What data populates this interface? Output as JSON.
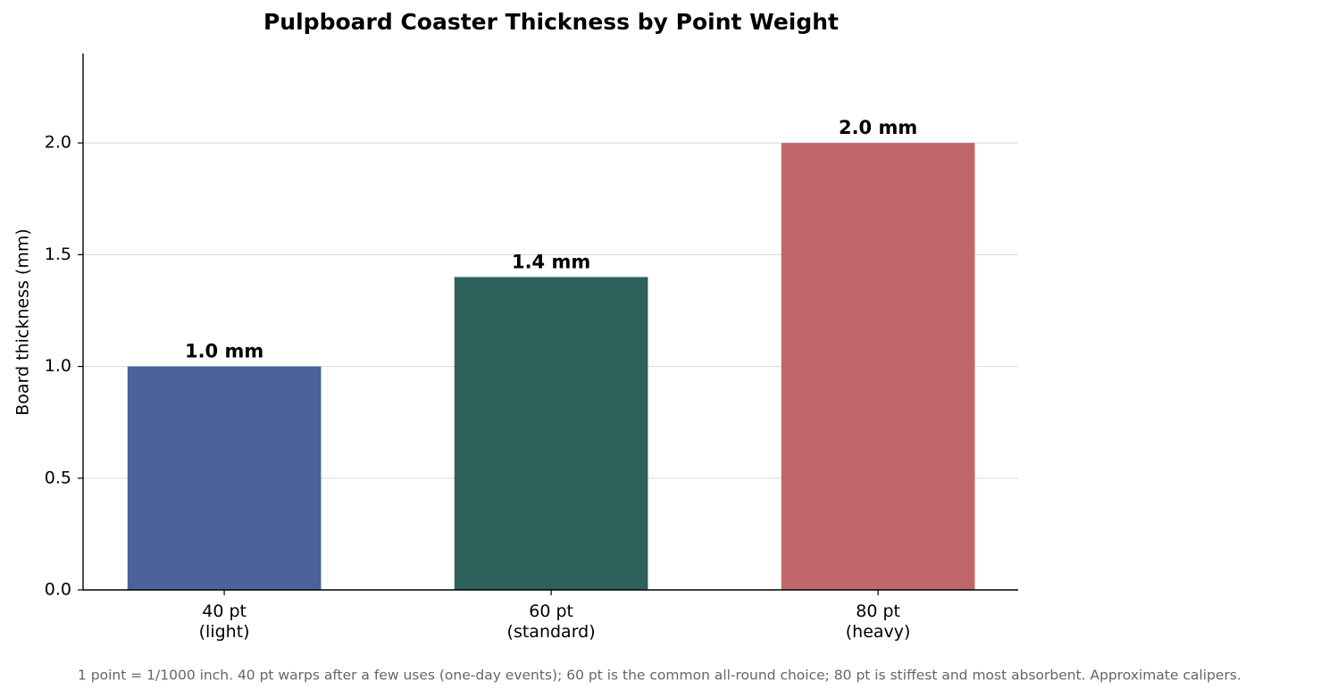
{
  "chart_data": {
    "type": "bar",
    "title": "Pulpboard Coaster Thickness by Point Weight",
    "y_label": "Board thickness (mm)",
    "categories": [
      "40 pt\n(light)",
      "60 pt\n(standard)",
      "80 pt\n(heavy)"
    ],
    "values": [
      1.0,
      1.4,
      2.0
    ],
    "value_labels": [
      "1.0 mm",
      "1.4 mm",
      "2.0 mm"
    ],
    "colors": [
      "#4a6399",
      "#2e605c",
      "#c0676a"
    ],
    "ylim": [
      0,
      2.4
    ],
    "yticks": [
      {
        "value": 0,
        "label": "0.0"
      },
      0.5,
      {
        "value": 1,
        "label": "1.0"
      },
      1.5,
      {
        "value": 2,
        "label": "2.0"
      }
    ],
    "grid": true,
    "footnote": "1 point = 1/1000 inch. 40 pt warps after a few uses (one-day events); 60 pt is the common all-round choice; 80 pt is stiffest and most absorbent. Approximate calipers."
  }
}
